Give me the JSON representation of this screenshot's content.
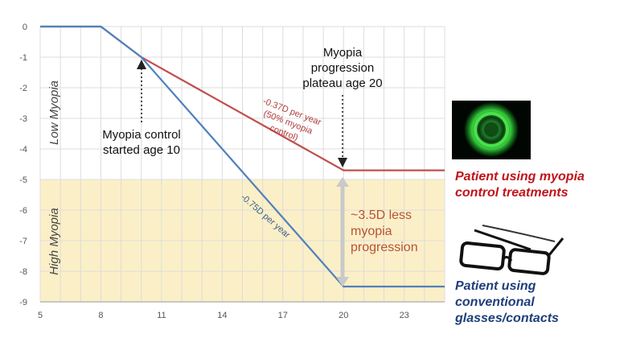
{
  "chart_data": {
    "type": "line",
    "xlim": [
      5,
      25
    ],
    "ylim": [
      -9,
      0
    ],
    "x_ticks": [
      5,
      8,
      11,
      14,
      17,
      20,
      23
    ],
    "y_ticks": [
      0,
      -1,
      -2,
      -3,
      -4,
      -5,
      -6,
      -7,
      -8,
      -9
    ],
    "grid": true,
    "series": [
      {
        "color": "#c0504d",
        "points": [
          [
            5,
            0
          ],
          [
            8,
            0
          ],
          [
            10,
            -1.0
          ],
          [
            20,
            -4.7
          ],
          [
            25,
            -4.7
          ]
        ]
      },
      {
        "color": "#4f81bd",
        "points": [
          [
            5,
            0
          ],
          [
            8,
            0
          ],
          [
            10,
            -1.0
          ],
          [
            20,
            -8.5
          ],
          [
            25,
            -8.5
          ]
        ]
      }
    ],
    "bands": [
      {
        "label": "Low Myopia",
        "from": 0,
        "to": -5,
        "color": "#ffffff"
      },
      {
        "label": "High Myopia",
        "from": -5,
        "to": -9,
        "color": "#fbefc7"
      }
    ],
    "annotations": {
      "control_start": "Myopia control\nstarted age 10",
      "plateau": "Myopia\nprogression\nplateau age 20",
      "rate_red": [
        "-0.37D per year",
        "(50% myopia",
        "control)"
      ],
      "rate_blue": "-0.75D per year",
      "gap": "~3.5D less\nmyopia\nprogression"
    },
    "legend": {
      "red": "Patient using myopia\ncontrol treatments",
      "blue": "Patient using\nconventional\nglasses/contacts"
    }
  },
  "icons": {
    "lens": "contact-lens-image",
    "glasses": "eyeglasses-image"
  }
}
